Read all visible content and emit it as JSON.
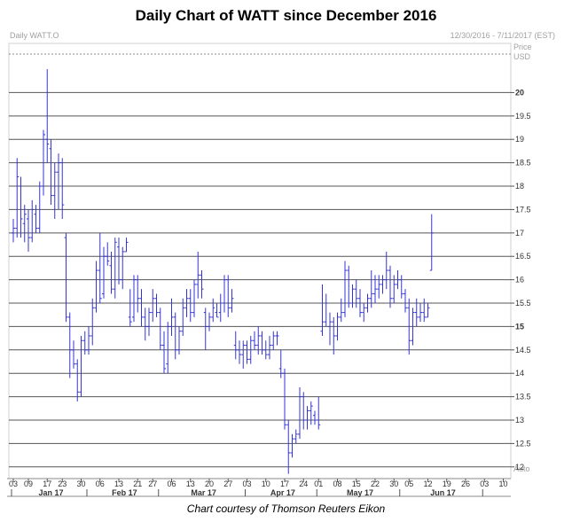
{
  "title": "Daily Chart of WATT since December 2016",
  "credit": "Chart courtesy of Thomson Reuters Eikon",
  "header": {
    "instrument": "Daily WATT.O",
    "date_range": "12/30/2016 - 7/11/2017 (EST)",
    "price_label": "Price",
    "currency_label": "USD",
    "auto_label": "Auto"
  },
  "colors": {
    "bars": "#3535d6",
    "grid": "#555555",
    "background": "#ffffff",
    "axis_text": "#333333"
  },
  "chart_data": {
    "type": "ohlc",
    "title": "Daily Chart of WATT since December 2016",
    "ylabel": "Price USD",
    "ylim": [
      11.75,
      21.05
    ],
    "y_ticks": [
      {
        "v": 12,
        "label": "12"
      },
      {
        "v": 12.5,
        "label": "12.5"
      },
      {
        "v": 13,
        "label": "13"
      },
      {
        "v": 13.5,
        "label": "13.5"
      },
      {
        "v": 14,
        "label": "14"
      },
      {
        "v": 14.5,
        "label": "14.5"
      },
      {
        "v": 15,
        "label": "15",
        "bold": true
      },
      {
        "v": 15.5,
        "label": "15.5"
      },
      {
        "v": 16,
        "label": "16"
      },
      {
        "v": 16.5,
        "label": "16.5"
      },
      {
        "v": 17,
        "label": "17"
      },
      {
        "v": 17.5,
        "label": "17.5"
      },
      {
        "v": 18,
        "label": "18"
      },
      {
        "v": 18.5,
        "label": "18.5"
      },
      {
        "v": 19,
        "label": "19"
      },
      {
        "v": 19.5,
        "label": "19.5"
      },
      {
        "v": 20,
        "label": "20",
        "bold": true
      }
    ],
    "x_day_ticks": [
      {
        "d": 0,
        "label": "03"
      },
      {
        "d": 4,
        "label": "09"
      },
      {
        "d": 9,
        "label": "17"
      },
      {
        "d": 13,
        "label": "23"
      },
      {
        "d": 18,
        "label": "30"
      },
      {
        "d": 23,
        "label": "06"
      },
      {
        "d": 28,
        "label": "13"
      },
      {
        "d": 33,
        "label": "21"
      },
      {
        "d": 37,
        "label": "27"
      },
      {
        "d": 42,
        "label": "06"
      },
      {
        "d": 47,
        "label": "13"
      },
      {
        "d": 52,
        "label": "20"
      },
      {
        "d": 57,
        "label": "27"
      },
      {
        "d": 62,
        "label": "03"
      },
      {
        "d": 67,
        "label": "10"
      },
      {
        "d": 72,
        "label": "17"
      },
      {
        "d": 77,
        "label": "24"
      },
      {
        "d": 81,
        "label": "01"
      },
      {
        "d": 86,
        "label": "08"
      },
      {
        "d": 91,
        "label": "15"
      },
      {
        "d": 96,
        "label": "22"
      },
      {
        "d": 101,
        "label": "30"
      },
      {
        "d": 105,
        "label": "05"
      },
      {
        "d": 110,
        "label": "12"
      },
      {
        "d": 115,
        "label": "19"
      },
      {
        "d": 120,
        "label": "26"
      },
      {
        "d": 125,
        "label": "03"
      },
      {
        "d": 130,
        "label": "10"
      }
    ],
    "x_months": [
      {
        "start": 0,
        "end": 20,
        "label": "Jan 17"
      },
      {
        "start": 20,
        "end": 39,
        "label": "Feb 17"
      },
      {
        "start": 39,
        "end": 62,
        "label": "Mar 17"
      },
      {
        "start": 62,
        "end": 81,
        "label": "Apr 17"
      },
      {
        "start": 81,
        "end": 103,
        "label": "May 17"
      },
      {
        "start": 103,
        "end": 125,
        "label": "Jun 17"
      }
    ],
    "bars": [
      {
        "d": 0,
        "o": 17.0,
        "h": 17.3,
        "l": 16.8,
        "c": 17.1
      },
      {
        "d": 1,
        "o": 17.1,
        "h": 18.6,
        "l": 16.9,
        "c": 18.2
      },
      {
        "d": 2,
        "o": 18.0,
        "h": 18.2,
        "l": 16.9,
        "c": 17.3
      },
      {
        "d": 3,
        "o": 17.2,
        "h": 17.6,
        "l": 16.8,
        "c": 17.4
      },
      {
        "d": 4,
        "o": 17.3,
        "h": 17.5,
        "l": 16.6,
        "c": 16.9
      },
      {
        "d": 5,
        "o": 16.9,
        "h": 17.7,
        "l": 16.8,
        "c": 17.5
      },
      {
        "d": 6,
        "o": 17.4,
        "h": 17.6,
        "l": 17.0,
        "c": 17.1
      },
      {
        "d": 7,
        "o": 17.1,
        "h": 18.1,
        "l": 17.0,
        "c": 18.0
      },
      {
        "d": 8,
        "o": 18.0,
        "h": 19.2,
        "l": 17.8,
        "c": 19.1
      },
      {
        "d": 9,
        "o": 19.0,
        "h": 20.5,
        "l": 18.5,
        "c": 18.9
      },
      {
        "d": 10,
        "o": 18.8,
        "h": 19.0,
        "l": 17.6,
        "c": 17.8
      },
      {
        "d": 11,
        "o": 17.8,
        "h": 18.5,
        "l": 17.3,
        "c": 18.3
      },
      {
        "d": 12,
        "o": 18.3,
        "h": 18.7,
        "l": 17.5,
        "c": 18.5
      },
      {
        "d": 13,
        "o": 18.5,
        "h": 18.6,
        "l": 17.3,
        "c": 17.6
      },
      {
        "d": 14,
        "o": 16.9,
        "h": 17.0,
        "l": 15.1,
        "c": 15.2
      },
      {
        "d": 15,
        "o": 15.2,
        "h": 15.3,
        "l": 13.9,
        "c": 14.5
      },
      {
        "d": 16,
        "o": 14.5,
        "h": 14.7,
        "l": 14.1,
        "c": 14.2
      },
      {
        "d": 17,
        "o": 14.2,
        "h": 14.3,
        "l": 13.4,
        "c": 13.6
      },
      {
        "d": 18,
        "o": 13.6,
        "h": 14.8,
        "l": 13.5,
        "c": 14.7
      },
      {
        "d": 19,
        "o": 14.7,
        "h": 14.9,
        "l": 14.4,
        "c": 14.5
      },
      {
        "d": 20,
        "o": 14.5,
        "h": 15.0,
        "l": 14.4,
        "c": 14.8
      },
      {
        "d": 21,
        "o": 14.8,
        "h": 15.6,
        "l": 14.6,
        "c": 15.4
      },
      {
        "d": 22,
        "o": 15.4,
        "h": 16.4,
        "l": 15.3,
        "c": 16.2
      },
      {
        "d": 23,
        "o": 16.2,
        "h": 17.0,
        "l": 15.5,
        "c": 15.6
      },
      {
        "d": 24,
        "o": 15.7,
        "h": 16.7,
        "l": 15.6,
        "c": 16.5
      },
      {
        "d": 25,
        "o": 16.5,
        "h": 16.8,
        "l": 16.3,
        "c": 16.4
      },
      {
        "d": 26,
        "o": 16.3,
        "h": 16.6,
        "l": 15.7,
        "c": 15.8
      },
      {
        "d": 27,
        "o": 15.8,
        "h": 16.9,
        "l": 15.6,
        "c": 16.8
      },
      {
        "d": 28,
        "o": 16.7,
        "h": 16.9,
        "l": 15.9,
        "c": 16.0
      },
      {
        "d": 29,
        "o": 16.0,
        "h": 16.7,
        "l": 15.8,
        "c": 16.6
      },
      {
        "d": 30,
        "o": 16.6,
        "h": 16.9,
        "l": 16.6,
        "c": 16.8
      },
      {
        "d": 31,
        "o": 15.2,
        "h": 15.8,
        "l": 15.0,
        "c": 15.1
      },
      {
        "d": 32,
        "o": 15.2,
        "h": 16.1,
        "l": 15.1,
        "c": 16.0
      },
      {
        "d": 33,
        "o": 16.0,
        "h": 16.1,
        "l": 15.3,
        "c": 15.6
      },
      {
        "d": 34,
        "o": 15.6,
        "h": 15.8,
        "l": 15.0,
        "c": 15.2
      },
      {
        "d": 35,
        "o": 15.2,
        "h": 15.4,
        "l": 14.7,
        "c": 15.0
      },
      {
        "d": 36,
        "o": 15.0,
        "h": 15.4,
        "l": 14.8,
        "c": 15.3
      },
      {
        "d": 37,
        "o": 15.3,
        "h": 15.8,
        "l": 15.1,
        "c": 15.6
      },
      {
        "d": 38,
        "o": 15.6,
        "h": 15.7,
        "l": 15.2,
        "c": 15.3
      },
      {
        "d": 39,
        "o": 15.3,
        "h": 15.4,
        "l": 14.5,
        "c": 14.6
      },
      {
        "d": 40,
        "o": 14.6,
        "h": 14.9,
        "l": 14.0,
        "c": 14.1
      },
      {
        "d": 41,
        "o": 14.2,
        "h": 15.1,
        "l": 14.0,
        "c": 15.0
      },
      {
        "d": 42,
        "o": 15.0,
        "h": 15.6,
        "l": 14.8,
        "c": 15.2
      },
      {
        "d": 43,
        "o": 15.2,
        "h": 15.3,
        "l": 14.3,
        "c": 14.5
      },
      {
        "d": 44,
        "o": 14.5,
        "h": 15.0,
        "l": 14.4,
        "c": 14.9
      },
      {
        "d": 45,
        "o": 14.9,
        "h": 15.6,
        "l": 14.8,
        "c": 15.4
      },
      {
        "d": 46,
        "o": 15.4,
        "h": 15.8,
        "l": 15.2,
        "c": 15.6
      },
      {
        "d": 47,
        "o": 15.6,
        "h": 15.8,
        "l": 15.1,
        "c": 15.3
      },
      {
        "d": 48,
        "o": 15.3,
        "h": 16.0,
        "l": 15.2,
        "c": 15.9
      },
      {
        "d": 49,
        "o": 15.9,
        "h": 16.6,
        "l": 15.6,
        "c": 16.1
      },
      {
        "d": 50,
        "o": 16.1,
        "h": 16.2,
        "l": 15.6,
        "c": 15.8
      },
      {
        "d": 51,
        "o": 15.3,
        "h": 15.4,
        "l": 14.5,
        "c": 15.0
      },
      {
        "d": 52,
        "o": 15.0,
        "h": 15.3,
        "l": 14.9,
        "c": 15.2
      },
      {
        "d": 53,
        "o": 15.2,
        "h": 15.6,
        "l": 15.1,
        "c": 15.4
      },
      {
        "d": 54,
        "o": 15.3,
        "h": 15.5,
        "l": 15.2,
        "c": 15.2
      },
      {
        "d": 55,
        "o": 15.3,
        "h": 15.7,
        "l": 15.1,
        "c": 15.5
      },
      {
        "d": 56,
        "o": 15.5,
        "h": 16.1,
        "l": 15.3,
        "c": 16.0
      },
      {
        "d": 57,
        "o": 16.0,
        "h": 16.1,
        "l": 15.2,
        "c": 15.4
      },
      {
        "d": 58,
        "o": 15.4,
        "h": 15.8,
        "l": 15.3,
        "c": 15.6
      },
      {
        "d": 59,
        "o": 14.6,
        "h": 14.9,
        "l": 14.3,
        "c": 14.5
      },
      {
        "d": 60,
        "o": 14.5,
        "h": 14.7,
        "l": 14.2,
        "c": 14.4
      },
      {
        "d": 61,
        "o": 14.4,
        "h": 14.7,
        "l": 14.1,
        "c": 14.6
      },
      {
        "d": 62,
        "o": 14.6,
        "h": 14.7,
        "l": 14.2,
        "c": 14.3
      },
      {
        "d": 63,
        "o": 14.3,
        "h": 14.8,
        "l": 14.2,
        "c": 14.7
      },
      {
        "d": 64,
        "o": 14.7,
        "h": 14.9,
        "l": 14.5,
        "c": 14.6
      },
      {
        "d": 65,
        "o": 14.6,
        "h": 15.0,
        "l": 14.4,
        "c": 14.8
      },
      {
        "d": 66,
        "o": 14.8,
        "h": 14.9,
        "l": 14.4,
        "c": 14.5
      },
      {
        "d": 67,
        "o": 14.5,
        "h": 14.7,
        "l": 14.3,
        "c": 14.4
      },
      {
        "d": 68,
        "o": 14.4,
        "h": 14.8,
        "l": 14.3,
        "c": 14.6
      },
      {
        "d": 69,
        "o": 14.6,
        "h": 14.9,
        "l": 14.5,
        "c": 14.8
      },
      {
        "d": 70,
        "o": 14.8,
        "h": 14.9,
        "l": 14.6,
        "c": 14.8
      },
      {
        "d": 71,
        "o": 14.1,
        "h": 14.5,
        "l": 13.9,
        "c": 14.0
      },
      {
        "d": 72,
        "o": 14.0,
        "h": 14.1,
        "l": 12.8,
        "c": 12.9
      },
      {
        "d": 73,
        "o": 12.9,
        "h": 13.0,
        "l": 11.85,
        "c": 12.3
      },
      {
        "d": 74,
        "o": 12.3,
        "h": 12.7,
        "l": 12.2,
        "c": 12.6
      },
      {
        "d": 75,
        "o": 12.6,
        "h": 12.8,
        "l": 12.5,
        "c": 12.7
      },
      {
        "d": 76,
        "o": 12.7,
        "h": 13.7,
        "l": 12.6,
        "c": 13.5
      },
      {
        "d": 77,
        "o": 13.5,
        "h": 13.6,
        "l": 12.8,
        "c": 13.0
      },
      {
        "d": 78,
        "o": 13.0,
        "h": 13.3,
        "l": 12.8,
        "c": 13.2
      },
      {
        "d": 79,
        "o": 13.2,
        "h": 13.4,
        "l": 12.9,
        "c": 13.3
      },
      {
        "d": 80,
        "o": 13.1,
        "h": 13.2,
        "l": 12.9,
        "c": 13.0
      },
      {
        "d": 81,
        "o": 13.0,
        "h": 13.5,
        "l": 12.8,
        "c": 12.9
      },
      {
        "d": 82,
        "o": 14.9,
        "h": 15.9,
        "l": 14.8,
        "c": 15.1
      },
      {
        "d": 83,
        "o": 15.1,
        "h": 15.7,
        "l": 15.0,
        "c": 15.5
      },
      {
        "d": 84,
        "o": 15.0,
        "h": 15.3,
        "l": 14.6,
        "c": 15.1
      },
      {
        "d": 85,
        "o": 15.1,
        "h": 15.2,
        "l": 14.4,
        "c": 14.8
      },
      {
        "d": 86,
        "o": 14.8,
        "h": 15.3,
        "l": 14.7,
        "c": 15.2
      },
      {
        "d": 87,
        "o": 15.2,
        "h": 15.6,
        "l": 15.1,
        "c": 15.3
      },
      {
        "d": 88,
        "o": 15.3,
        "h": 16.4,
        "l": 15.2,
        "c": 16.2
      },
      {
        "d": 89,
        "o": 16.2,
        "h": 16.3,
        "l": 15.4,
        "c": 15.5
      },
      {
        "d": 90,
        "o": 15.5,
        "h": 15.9,
        "l": 15.4,
        "c": 15.8
      },
      {
        "d": 91,
        "o": 15.8,
        "h": 16.0,
        "l": 15.4,
        "c": 15.6
      },
      {
        "d": 92,
        "o": 15.6,
        "h": 15.8,
        "l": 15.2,
        "c": 15.3
      },
      {
        "d": 93,
        "o": 15.3,
        "h": 15.5,
        "l": 15.1,
        "c": 15.4
      },
      {
        "d": 94,
        "o": 15.4,
        "h": 15.7,
        "l": 15.3,
        "c": 15.6
      },
      {
        "d": 95,
        "o": 15.6,
        "h": 16.2,
        "l": 15.4,
        "c": 15.7
      },
      {
        "d": 96,
        "o": 15.7,
        "h": 16.1,
        "l": 15.5,
        "c": 15.8
      },
      {
        "d": 97,
        "o": 15.8,
        "h": 16.1,
        "l": 15.6,
        "c": 15.9
      },
      {
        "d": 98,
        "o": 15.9,
        "h": 16.1,
        "l": 15.7,
        "c": 16.0
      },
      {
        "d": 99,
        "o": 16.0,
        "h": 16.6,
        "l": 15.8,
        "c": 16.2
      },
      {
        "d": 100,
        "o": 16.2,
        "h": 16.3,
        "l": 15.4,
        "c": 15.6
      },
      {
        "d": 101,
        "o": 15.6,
        "h": 16.1,
        "l": 15.5,
        "c": 15.9
      },
      {
        "d": 102,
        "o": 15.9,
        "h": 16.2,
        "l": 15.8,
        "c": 16.0
      },
      {
        "d": 103,
        "o": 16.0,
        "h": 16.1,
        "l": 15.6,
        "c": 15.7
      },
      {
        "d": 104,
        "o": 15.7,
        "h": 15.8,
        "l": 15.3,
        "c": 15.4
      },
      {
        "d": 105,
        "o": 15.4,
        "h": 15.6,
        "l": 14.4,
        "c": 14.7
      },
      {
        "d": 106,
        "o": 14.7,
        "h": 15.4,
        "l": 14.6,
        "c": 15.3
      },
      {
        "d": 107,
        "o": 15.3,
        "h": 15.6,
        "l": 15.0,
        "c": 15.2
      },
      {
        "d": 108,
        "o": 15.2,
        "h": 15.5,
        "l": 15.1,
        "c": 15.3
      },
      {
        "d": 109,
        "o": 15.3,
        "h": 15.6,
        "l": 15.1,
        "c": 15.2
      },
      {
        "d": 110,
        "o": 15.2,
        "h": 15.5,
        "l": 15.2,
        "c": 15.4
      },
      {
        "d": 111,
        "o": 16.2,
        "h": 17.4,
        "l": 16.2,
        "c": 17.0
      }
    ]
  }
}
